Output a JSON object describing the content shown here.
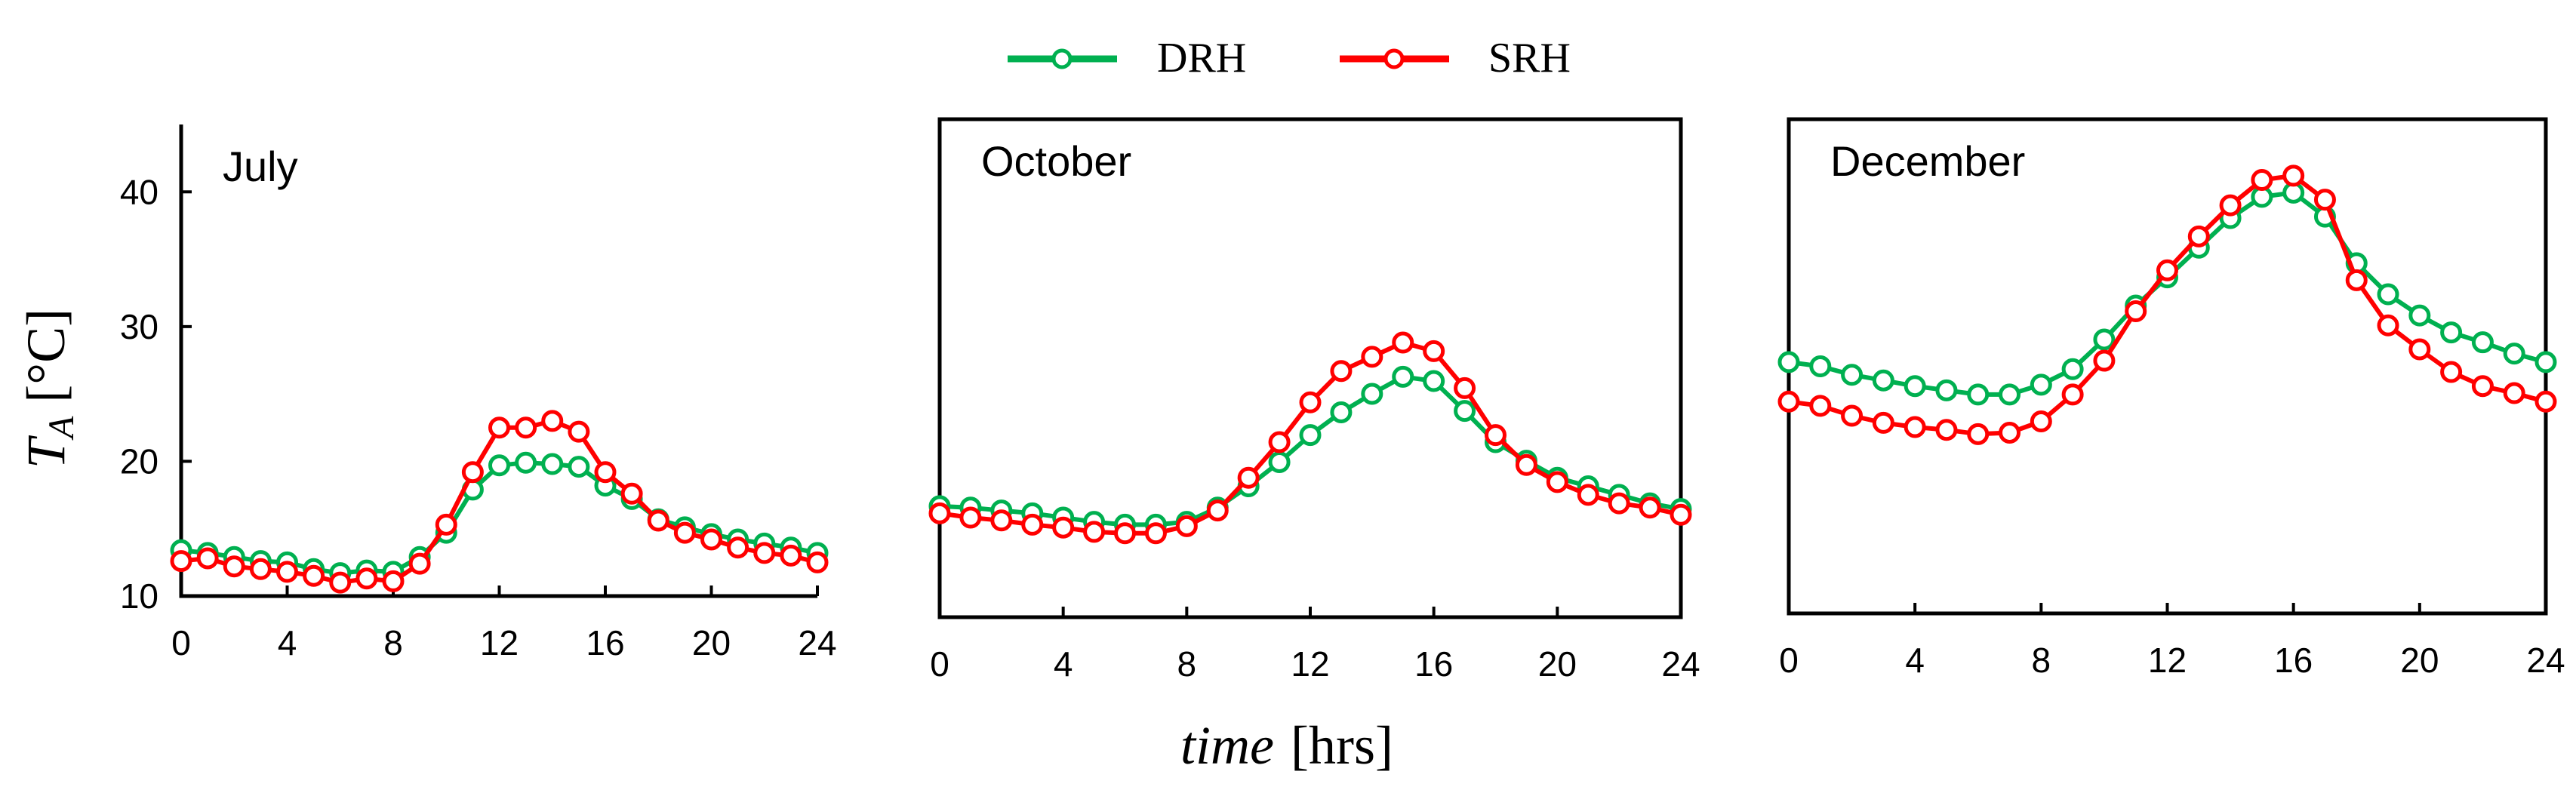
{
  "chart_data": {
    "type": "line",
    "legend": [
      {
        "name": "DRH",
        "color": "#00b050"
      },
      {
        "name": "SRH",
        "color": "#ff0000"
      }
    ],
    "ylabel_symbol": "T",
    "ylabel_subscript": "A",
    "ylabel_unit": " [°C]",
    "xlabel_italic": "time",
    "xlabel_unit": "[hrs]",
    "x_ticks": [
      0,
      4,
      8,
      12,
      16,
      20,
      24
    ],
    "panels": [
      {
        "title": "July",
        "xlim": [
          0,
          24
        ],
        "ylim": [
          10,
          45
        ],
        "y_ticks": [
          10,
          20,
          30,
          40
        ],
        "series": [
          {
            "name": "DRH",
            "x": [
              0,
              1,
              2,
              3,
              4,
              5,
              6,
              7,
              8,
              9,
              10,
              11,
              12,
              13,
              14,
              15,
              16,
              17,
              18,
              19,
              20,
              21,
              22,
              23,
              24
            ],
            "y": [
              13.4,
              13.2,
              12.9,
              12.6,
              12.5,
              12.0,
              11.7,
              11.9,
              11.8,
              12.9,
              14.7,
              17.9,
              19.7,
              19.9,
              19.8,
              19.6,
              18.2,
              17.2,
              15.7,
              15.1,
              14.6,
              14.2,
              13.9,
              13.6,
              13.2
            ]
          },
          {
            "name": "SRH",
            "x": [
              0,
              1,
              2,
              3,
              4,
              5,
              6,
              7,
              8,
              9,
              10,
              11,
              12,
              13,
              14,
              15,
              16,
              17,
              18,
              19,
              20,
              21,
              22,
              23,
              24
            ],
            "y": [
              12.6,
              12.8,
              12.2,
              12.0,
              11.8,
              11.5,
              11.0,
              11.3,
              11.1,
              12.4,
              15.3,
              19.2,
              22.5,
              22.5,
              23.0,
              22.2,
              19.2,
              17.6,
              15.6,
              14.7,
              14.2,
              13.6,
              13.2,
              13.0,
              12.5
            ]
          }
        ]
      },
      {
        "title": "October",
        "xlim": [
          0,
          24
        ],
        "ylim": [
          10,
          45
        ],
        "y_ticks": [],
        "series": [
          {
            "name": "DRH",
            "x": [
              0,
              1,
              2,
              3,
              4,
              5,
              6,
              7,
              8,
              9,
              10,
              11,
              12,
              13,
              14,
              15,
              16,
              17,
              18,
              19,
              20,
              21,
              22,
              23,
              24
            ],
            "y": [
              17.8,
              17.7,
              17.5,
              17.3,
              17.0,
              16.7,
              16.5,
              16.5,
              16.7,
              17.7,
              19.2,
              20.9,
              22.8,
              24.4,
              25.7,
              26.9,
              26.6,
              24.5,
              22.3,
              21.0,
              19.8,
              19.2,
              18.6,
              18.0,
              17.6
            ]
          },
          {
            "name": "SRH",
            "x": [
              0,
              1,
              2,
              3,
              4,
              5,
              6,
              7,
              8,
              9,
              10,
              11,
              12,
              13,
              14,
              15,
              16,
              17,
              18,
              19,
              20,
              21,
              22,
              23,
              24
            ],
            "y": [
              17.3,
              17.0,
              16.8,
              16.5,
              16.3,
              16.0,
              15.9,
              15.9,
              16.4,
              17.5,
              19.8,
              22.3,
              25.1,
              27.3,
              28.3,
              29.3,
              28.7,
              26.1,
              22.8,
              20.7,
              19.5,
              18.6,
              18.0,
              17.7,
              17.2
            ]
          }
        ]
      },
      {
        "title": "December",
        "xlim": [
          0,
          24
        ],
        "ylim": [
          10,
          45
        ],
        "y_ticks": [],
        "series": [
          {
            "name": "DRH",
            "x": [
              0,
              1,
              2,
              3,
              4,
              5,
              6,
              7,
              8,
              9,
              10,
              11,
              12,
              13,
              14,
              15,
              16,
              17,
              18,
              19,
              20,
              21,
              22,
              23,
              24
            ],
            "y": [
              27.8,
              27.5,
              26.9,
              26.5,
              26.1,
              25.8,
              25.5,
              25.5,
              26.2,
              27.3,
              29.4,
              31.8,
              33.8,
              35.9,
              38.0,
              39.5,
              39.8,
              38.1,
              34.8,
              32.6,
              31.1,
              29.9,
              29.2,
              28.4,
              27.8
            ]
          },
          {
            "name": "SRH",
            "x": [
              0,
              1,
              2,
              3,
              4,
              5,
              6,
              7,
              8,
              9,
              10,
              11,
              12,
              13,
              14,
              15,
              16,
              17,
              18,
              19,
              20,
              21,
              22,
              23,
              24
            ],
            "y": [
              25.0,
              24.7,
              24.0,
              23.5,
              23.2,
              23.0,
              22.7,
              22.8,
              23.6,
              25.5,
              27.9,
              31.4,
              34.3,
              36.7,
              38.9,
              40.7,
              41.0,
              39.3,
              33.6,
              30.4,
              28.7,
              27.1,
              26.1,
              25.6,
              25.0
            ]
          }
        ]
      }
    ]
  }
}
